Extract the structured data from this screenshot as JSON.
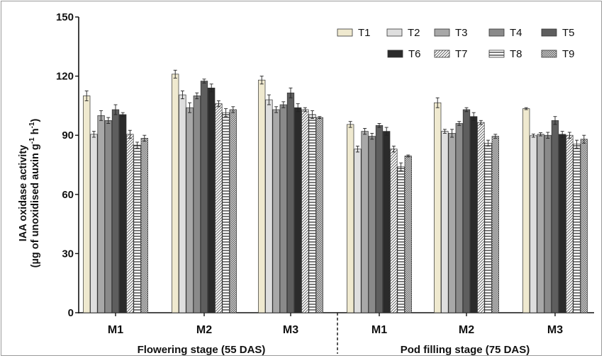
{
  "chart_data": {
    "type": "bar",
    "ylabel_line1": "IAA oxidase activity",
    "ylabel_line2_a": "(µg of unoxidised auxin g",
    "ylabel_sup1": "-1",
    "ylabel_line2_b": " h",
    "ylabel_sup2": "-1",
    "ylabel_line2_c": ")",
    "ylim": [
      0,
      150
    ],
    "yticks": [
      "0",
      "30",
      "60",
      "90",
      "120",
      "150"
    ],
    "categories": [
      "M1",
      "M2",
      "M3",
      "M1",
      "M2",
      "M3"
    ],
    "groups": [
      {
        "label": "Flowering stage (55 DAS)",
        "categories": [
          0,
          1,
          2
        ]
      },
      {
        "label": "Pod filling stage (75 DAS)",
        "categories": [
          3,
          4,
          5
        ]
      }
    ],
    "legend_position": "top-right",
    "grid": false,
    "series": [
      {
        "name": "T1",
        "values": [
          110,
          121,
          118,
          95.5,
          106.5,
          103.5
        ],
        "errors": [
          2.5,
          2,
          2,
          1.5,
          2.5,
          0.5
        ],
        "fill": "#efe9cf",
        "pattern": "solid"
      },
      {
        "name": "T2",
        "values": [
          90.5,
          110.5,
          108,
          83,
          92,
          89.8
        ],
        "errors": [
          1.5,
          2,
          2.5,
          1.5,
          1,
          0.8
        ],
        "fill": "#dedede",
        "pattern": "solid"
      },
      {
        "name": "T3",
        "values": [
          100,
          104,
          103,
          92,
          91,
          90.5
        ],
        "errors": [
          2.5,
          2.5,
          1.5,
          1.5,
          2,
          0.8
        ],
        "fill": "#a8a8a8",
        "pattern": "solid"
      },
      {
        "name": "T4",
        "values": [
          97.5,
          110,
          105.5,
          89.5,
          96,
          90
        ],
        "errors": [
          1.5,
          1.5,
          1.5,
          1.5,
          1,
          1.5
        ],
        "fill": "#8a8a8a",
        "pattern": "solid"
      },
      {
        "name": "T5",
        "values": [
          103,
          117.5,
          111.5,
          95,
          103,
          97.5
        ],
        "errors": [
          2.5,
          1,
          2.5,
          1,
          1,
          2
        ],
        "fill": "#5e5e5e",
        "pattern": "solid"
      },
      {
        "name": "T6",
        "values": [
          100.5,
          114,
          104,
          92,
          99.5,
          90.5
        ],
        "errors": [
          1,
          2,
          2,
          2,
          2,
          1.5
        ],
        "fill": "#2b2b2b",
        "pattern": "solid"
      },
      {
        "name": "T7",
        "values": [
          90.5,
          106,
          103,
          83,
          96.5,
          90
        ],
        "errors": [
          2,
          1.5,
          1,
          1.5,
          1,
          1.5
        ],
        "fill": "#ffffff",
        "pattern": "diagonal"
      },
      {
        "name": "T8",
        "values": [
          85,
          101.5,
          100.5,
          74,
          86,
          85.5
        ],
        "errors": [
          1.5,
          2,
          2,
          2,
          1.5,
          2
        ],
        "fill": "#ffffff",
        "pattern": "horizontal"
      },
      {
        "name": "T9",
        "values": [
          88.5,
          103,
          99,
          79.5,
          89.5,
          88
        ],
        "errors": [
          1.5,
          1.5,
          0.5,
          0.5,
          1,
          2
        ],
        "fill": "#cfcfcf",
        "pattern": "checker"
      }
    ]
  }
}
